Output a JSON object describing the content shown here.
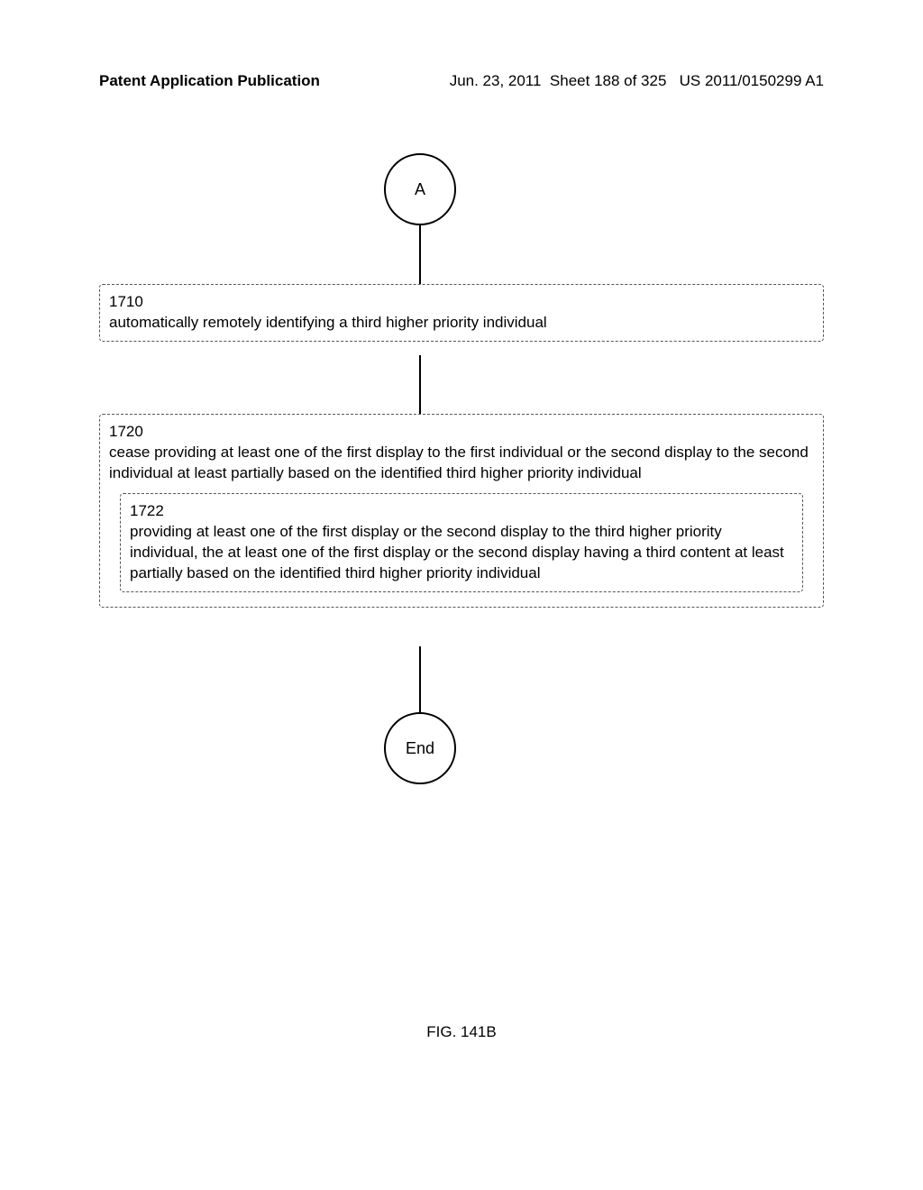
{
  "header": {
    "left": "Patent Application Publication",
    "right_date": "Jun. 23, 2011",
    "right_sheet": "Sheet 188 of 325",
    "right_pubnum": "US 2011/0150299 A1"
  },
  "flowchart": {
    "type": "flowchart",
    "connector_top": "A",
    "connector_bottom": "End",
    "step1": {
      "num": "1710",
      "text": "automatically remotely identifying a third higher priority individual"
    },
    "step2": {
      "num": "1720",
      "text": "cease providing at least one of the first display to the first individual or the second display to the second individual at least partially based on the identified third higher priority individual",
      "inner": {
        "num": "1722",
        "text": "providing at least one of the first display or the second display to the third higher priority individual, the at least one of the first display or the second display having a third content at least partially based on the identified third higher priority individual"
      }
    }
  },
  "figure_label": "FIG. 141B",
  "style": {
    "page_bg": "#ffffff",
    "text_color": "#000000",
    "box_border_color": "#555555",
    "box_border_style": "dashed",
    "font_family": "Arial, Helvetica, sans-serif",
    "body_fontsize": 17,
    "header_fontsize": 17,
    "circle_diameter": 80
  }
}
